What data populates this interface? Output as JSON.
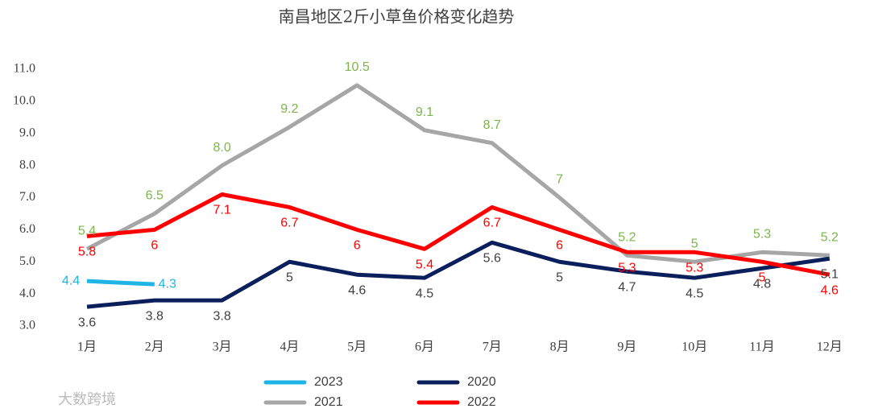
{
  "chart_data": {
    "type": "line",
    "title": "南昌地区2斤小草鱼价格变化趋势",
    "watermark": "大数跨境",
    "categories": [
      "1月",
      "2月",
      "3月",
      "4月",
      "5月",
      "6月",
      "7月",
      "8月",
      "9月",
      "10月",
      "11月",
      "12月"
    ],
    "series": [
      {
        "name": "2023",
        "color": "#1fb4e6",
        "label_color": "#1fb4e6",
        "values": [
          4.4,
          4.3,
          null,
          null,
          null,
          null,
          null,
          null,
          null,
          null,
          null,
          null
        ]
      },
      {
        "name": "2020",
        "color": "#0b1f5c",
        "label_color": "#404040",
        "values": [
          3.6,
          3.8,
          3.8,
          5,
          4.6,
          4.5,
          5.6,
          5,
          4.7,
          4.5,
          4.8,
          5.1
        ]
      },
      {
        "name": "2021",
        "color": "#a6a6a6",
        "label_color": "#7ab648",
        "values": [
          5.4,
          6.5,
          8.0,
          9.2,
          10.5,
          9.1,
          8.7,
          7,
          5.2,
          5,
          5.3,
          5.2
        ],
        "value_labels": [
          "5.4",
          "6.5",
          "8.0",
          "9.2",
          "10.5",
          "9.1",
          "8.7",
          "7",
          "5.2",
          "5",
          "5.3",
          "5.2"
        ]
      },
      {
        "name": "2022",
        "color": "#ff0000",
        "label_color": "#ff0000",
        "values": [
          5.8,
          6,
          7.1,
          6.7,
          6,
          5.4,
          6.7,
          6,
          5.3,
          5.3,
          5,
          4.6
        ]
      }
    ],
    "ylim": [
      3,
      11
    ],
    "yticks": [
      {
        "value": 3,
        "label": "3.0"
      },
      {
        "value": 4,
        "label": "4.0"
      },
      {
        "value": 5,
        "label": "5.0"
      },
      {
        "value": 6,
        "label": "6.0"
      },
      {
        "value": 7,
        "label": "7.0"
      },
      {
        "value": 8,
        "label": "8.0"
      },
      {
        "value": 9,
        "label": "9.0"
      },
      {
        "value": 10,
        "label": "10.0"
      },
      {
        "value": 11,
        "label": "11.0"
      }
    ],
    "grid": false,
    "legend": "bottom"
  }
}
